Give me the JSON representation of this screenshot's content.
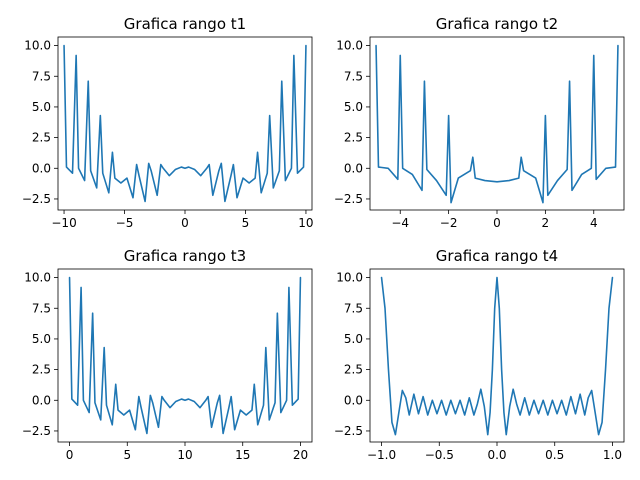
{
  "colors": {
    "series": "#1f77b4"
  },
  "chart_data": [
    {
      "type": "line",
      "title": "Grafica rango t1",
      "xlabel": "",
      "ylabel": "",
      "xlim": [
        -10.5,
        10.5
      ],
      "ylim": [
        -3.4,
        10.7
      ],
      "xticks": [
        -10,
        -5,
        0,
        5,
        10
      ],
      "xtick_labels": [
        "−10",
        "−5",
        "0",
        "5",
        "10"
      ],
      "yticks": [
        -2.5,
        0,
        2.5,
        5,
        7.5,
        10
      ],
      "ytick_labels": [
        "−2.5",
        "0.0",
        "2.5",
        "5.0",
        "7.5",
        "10.0"
      ],
      "series": [
        {
          "x": [
            -10,
            -9.8,
            -9.3,
            -9,
            -8.8,
            -8.3,
            -8,
            -7.8,
            -7.3,
            -7,
            -6.8,
            -6.3,
            -6,
            -5.8,
            -5.3,
            -4.8,
            -4.3,
            -4,
            -3.8,
            -3.3,
            -3,
            -2.8,
            -2.3,
            -2,
            -1.8,
            -1.3,
            -0.8,
            -0.3,
            0,
            0.3,
            0.8,
            1.3,
            1.8,
            2,
            2.3,
            2.8,
            3,
            3.3,
            3.8,
            4,
            4.3,
            4.8,
            5.3,
            5.8,
            6,
            6.3,
            6.8,
            7,
            7.3,
            7.8,
            8,
            8.3,
            8.8,
            9,
            9.3,
            9.8,
            10
          ],
          "y": [
            10,
            0.1,
            -0.4,
            9.2,
            0,
            -1,
            7.1,
            -0.2,
            -1.6,
            4.3,
            -0.4,
            -2,
            1.3,
            -0.8,
            -1.2,
            -0.8,
            -2.4,
            0.3,
            -0.6,
            -2.7,
            0.4,
            -0.2,
            -2.2,
            0.3,
            0,
            -0.6,
            -0.1,
            0.1,
            0,
            0.1,
            -0.1,
            -0.6,
            0,
            0.3,
            -2.2,
            -0.2,
            0.4,
            -2.7,
            -0.6,
            0.3,
            -2.4,
            -0.8,
            -1.2,
            -0.8,
            1.3,
            -2,
            -0.4,
            4.3,
            -1.6,
            -0.2,
            7.1,
            -1,
            0,
            9.2,
            -0.4,
            0.1,
            10
          ]
        }
      ]
    },
    {
      "type": "line",
      "title": "Grafica rango t2",
      "xlabel": "",
      "ylabel": "",
      "xlim": [
        -5.25,
        5.25
      ],
      "ylim": [
        -3.4,
        10.7
      ],
      "xticks": [
        -4,
        -2,
        0,
        2,
        4
      ],
      "xtick_labels": [
        "−4",
        "−2",
        "0",
        "2",
        "4"
      ],
      "yticks": [
        -2.5,
        0,
        2.5,
        5,
        7.5,
        10
      ],
      "ytick_labels": [
        "−2.5",
        "0.0",
        "2.5",
        "5.0",
        "7.5",
        "10.0"
      ],
      "series": [
        {
          "x": [
            -5,
            -4.9,
            -4.5,
            -4.1,
            -4,
            -3.9,
            -3.5,
            -3.1,
            -3,
            -2.9,
            -2.5,
            -2.1,
            -2,
            -1.9,
            -1.6,
            -1.1,
            -1,
            -0.9,
            -0.5,
            0,
            0.5,
            0.9,
            1,
            1.1,
            1.6,
            1.9,
            2,
            2.1,
            2.5,
            2.9,
            3,
            3.1,
            3.5,
            3.9,
            4,
            4.1,
            4.5,
            4.9,
            5
          ],
          "y": [
            10,
            0.1,
            0,
            -0.9,
            9.2,
            0,
            -0.5,
            -1.8,
            7.1,
            -0.1,
            -1,
            -2.2,
            4.3,
            -2.8,
            -0.8,
            -0.2,
            0.9,
            -0.8,
            -1,
            -1.1,
            -1,
            -0.8,
            0.9,
            -0.2,
            -0.8,
            -2.8,
            4.3,
            -2.2,
            -1,
            -0.1,
            7.1,
            -1.8,
            -0.5,
            0,
            9.2,
            -0.9,
            0,
            0.1,
            10
          ]
        }
      ]
    },
    {
      "type": "line",
      "title": "Grafica rango t3",
      "xlabel": "",
      "ylabel": "",
      "xlim": [
        -1,
        21
      ],
      "ylim": [
        -3.4,
        10.7
      ],
      "xticks": [
        0,
        5,
        10,
        15,
        20
      ],
      "xtick_labels": [
        "0",
        "5",
        "10",
        "15",
        "20"
      ],
      "yticks": [
        -2.5,
        0,
        2.5,
        5,
        7.5,
        10
      ],
      "ytick_labels": [
        "−2.5",
        "0.0",
        "2.5",
        "5.0",
        "7.5",
        "10.0"
      ],
      "series": [
        {
          "x": [
            0,
            0.2,
            0.7,
            1,
            1.2,
            1.7,
            2,
            2.2,
            2.7,
            3,
            3.2,
            3.7,
            4,
            4.2,
            4.7,
            5.2,
            5.7,
            6,
            6.2,
            6.7,
            7,
            7.2,
            7.7,
            8,
            8.2,
            8.7,
            9.2,
            9.7,
            10,
            10.3,
            10.8,
            11.3,
            11.8,
            12,
            12.3,
            12.8,
            13,
            13.3,
            13.8,
            14,
            14.3,
            14.8,
            15.3,
            15.8,
            16,
            16.3,
            16.8,
            17,
            17.3,
            17.8,
            18,
            18.3,
            18.8,
            19,
            19.3,
            19.8,
            20
          ],
          "y": [
            10,
            0.1,
            -0.4,
            9.2,
            0,
            -1,
            7.1,
            -0.2,
            -1.6,
            4.3,
            -0.4,
            -2,
            1.3,
            -0.8,
            -1.2,
            -0.8,
            -2.4,
            0.3,
            -0.6,
            -2.7,
            0.4,
            -0.2,
            -2.2,
            0.3,
            0,
            -0.6,
            -0.1,
            0.1,
            0,
            0.1,
            -0.1,
            -0.6,
            0,
            0.3,
            -2.2,
            -0.2,
            0.4,
            -2.7,
            -0.6,
            0.3,
            -2.4,
            -0.8,
            -1.2,
            -0.8,
            1.3,
            -2,
            -0.4,
            4.3,
            -1.6,
            -0.2,
            7.1,
            -1,
            0,
            9.2,
            -0.4,
            0.1,
            10
          ]
        }
      ]
    },
    {
      "type": "line",
      "title": "Grafica rango t4",
      "xlabel": "",
      "ylabel": "",
      "xlim": [
        -1.1,
        1.1
      ],
      "ylim": [
        -3.4,
        10.7
      ],
      "xticks": [
        -1,
        -0.5,
        0,
        0.5,
        1
      ],
      "xtick_labels": [
        "−1.0",
        "−0.5",
        "0.0",
        "0.5",
        "1.0"
      ],
      "yticks": [
        -2.5,
        0,
        2.5,
        5,
        7.5,
        10
      ],
      "ytick_labels": [
        "−2.5",
        "0.0",
        "2.5",
        "5.0",
        "7.5",
        "10.0"
      ],
      "series": [
        {
          "x": [
            -1,
            -0.97,
            -0.94,
            -0.91,
            -0.88,
            -0.85,
            -0.82,
            -0.79,
            -0.76,
            -0.72,
            -0.68,
            -0.64,
            -0.6,
            -0.56,
            -0.52,
            -0.48,
            -0.44,
            -0.4,
            -0.36,
            -0.32,
            -0.28,
            -0.24,
            -0.2,
            -0.17,
            -0.14,
            -0.11,
            -0.08,
            -0.06,
            -0.04,
            -0.02,
            0,
            0.02,
            0.04,
            0.06,
            0.08,
            0.11,
            0.14,
            0.17,
            0.2,
            0.24,
            0.28,
            0.32,
            0.36,
            0.4,
            0.44,
            0.48,
            0.52,
            0.56,
            0.6,
            0.64,
            0.68,
            0.72,
            0.76,
            0.79,
            0.82,
            0.85,
            0.88,
            0.91,
            0.94,
            0.97,
            1
          ],
          "y": [
            10,
            7.5,
            2.5,
            -1.8,
            -2.8,
            -1,
            0.8,
            0.2,
            -1.2,
            0.5,
            -1.1,
            0.3,
            -1.2,
            0,
            -1.1,
            0,
            -1.2,
            0,
            -1.1,
            0,
            -1.2,
            0.2,
            -1.2,
            -0.3,
            0.9,
            -0.5,
            -2.8,
            -1,
            2.5,
            7.5,
            10,
            7.5,
            2.5,
            -1,
            -2.8,
            -0.5,
            0.9,
            -0.3,
            -1.2,
            0.2,
            -1.2,
            0,
            -1.1,
            0,
            -1.2,
            0,
            -1.1,
            0,
            -1.2,
            0.3,
            -1.1,
            0.5,
            -1.2,
            0.2,
            0.8,
            -1,
            -2.8,
            -1.8,
            2.5,
            7.5,
            10
          ]
        }
      ]
    }
  ]
}
